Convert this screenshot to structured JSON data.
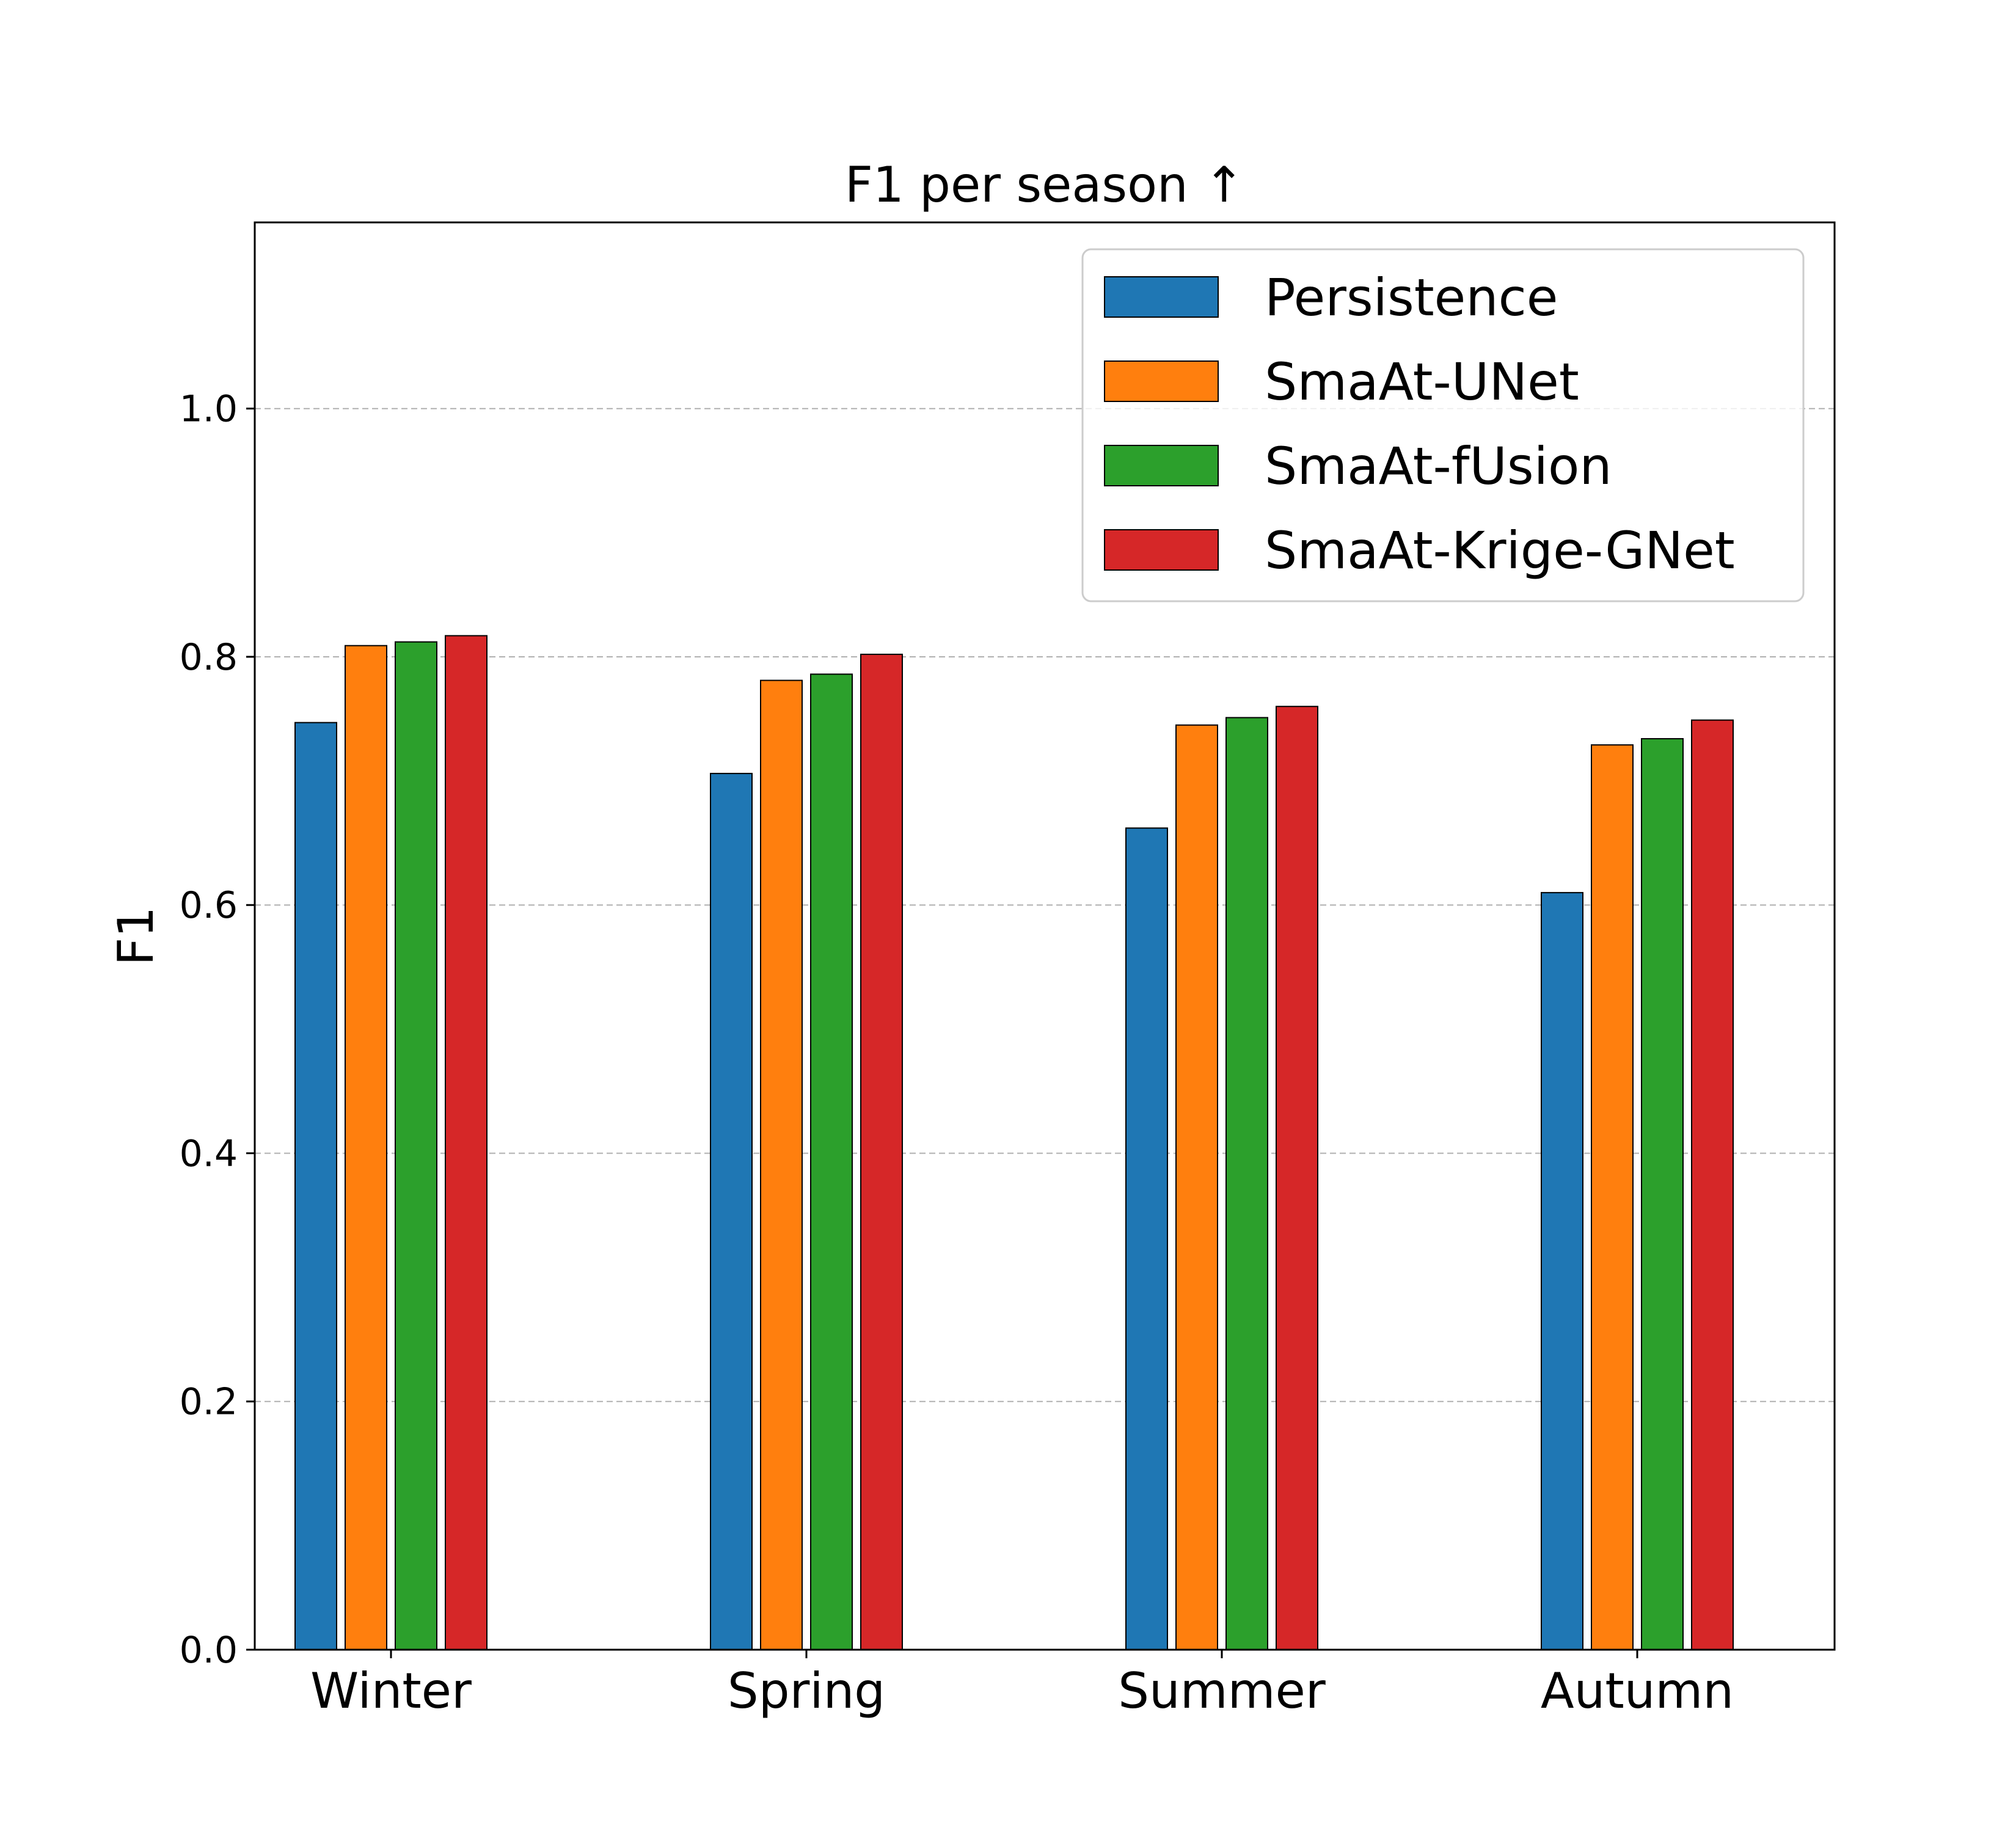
{
  "chart_data": {
    "type": "bar",
    "title": "F1 per season ↑",
    "xlabel": "",
    "ylabel": "F1",
    "ylim": [
      0,
      1.15
    ],
    "yticks": [
      "0.0",
      "0.2",
      "0.4",
      "0.6",
      "0.8",
      "1.0"
    ],
    "categories": [
      "Winter",
      "Spring",
      "Summer",
      "Autumn"
    ],
    "series": [
      {
        "name": "Persistence",
        "color": "#1f77b4",
        "values": [
          0.747,
          0.706,
          0.662,
          0.61
        ]
      },
      {
        "name": "SmaAt-UNet",
        "color": "#ff7f0e",
        "values": [
          0.809,
          0.781,
          0.745,
          0.729
        ]
      },
      {
        "name": "SmaAt-fUsion",
        "color": "#2ca02c",
        "values": [
          0.812,
          0.786,
          0.751,
          0.734
        ]
      },
      {
        "name": "SmaAt-Krige-GNet",
        "color": "#d62728",
        "values": [
          0.817,
          0.802,
          0.76,
          0.749
        ]
      }
    ],
    "grid": "horizontal dashed",
    "legend_position": "upper right"
  }
}
